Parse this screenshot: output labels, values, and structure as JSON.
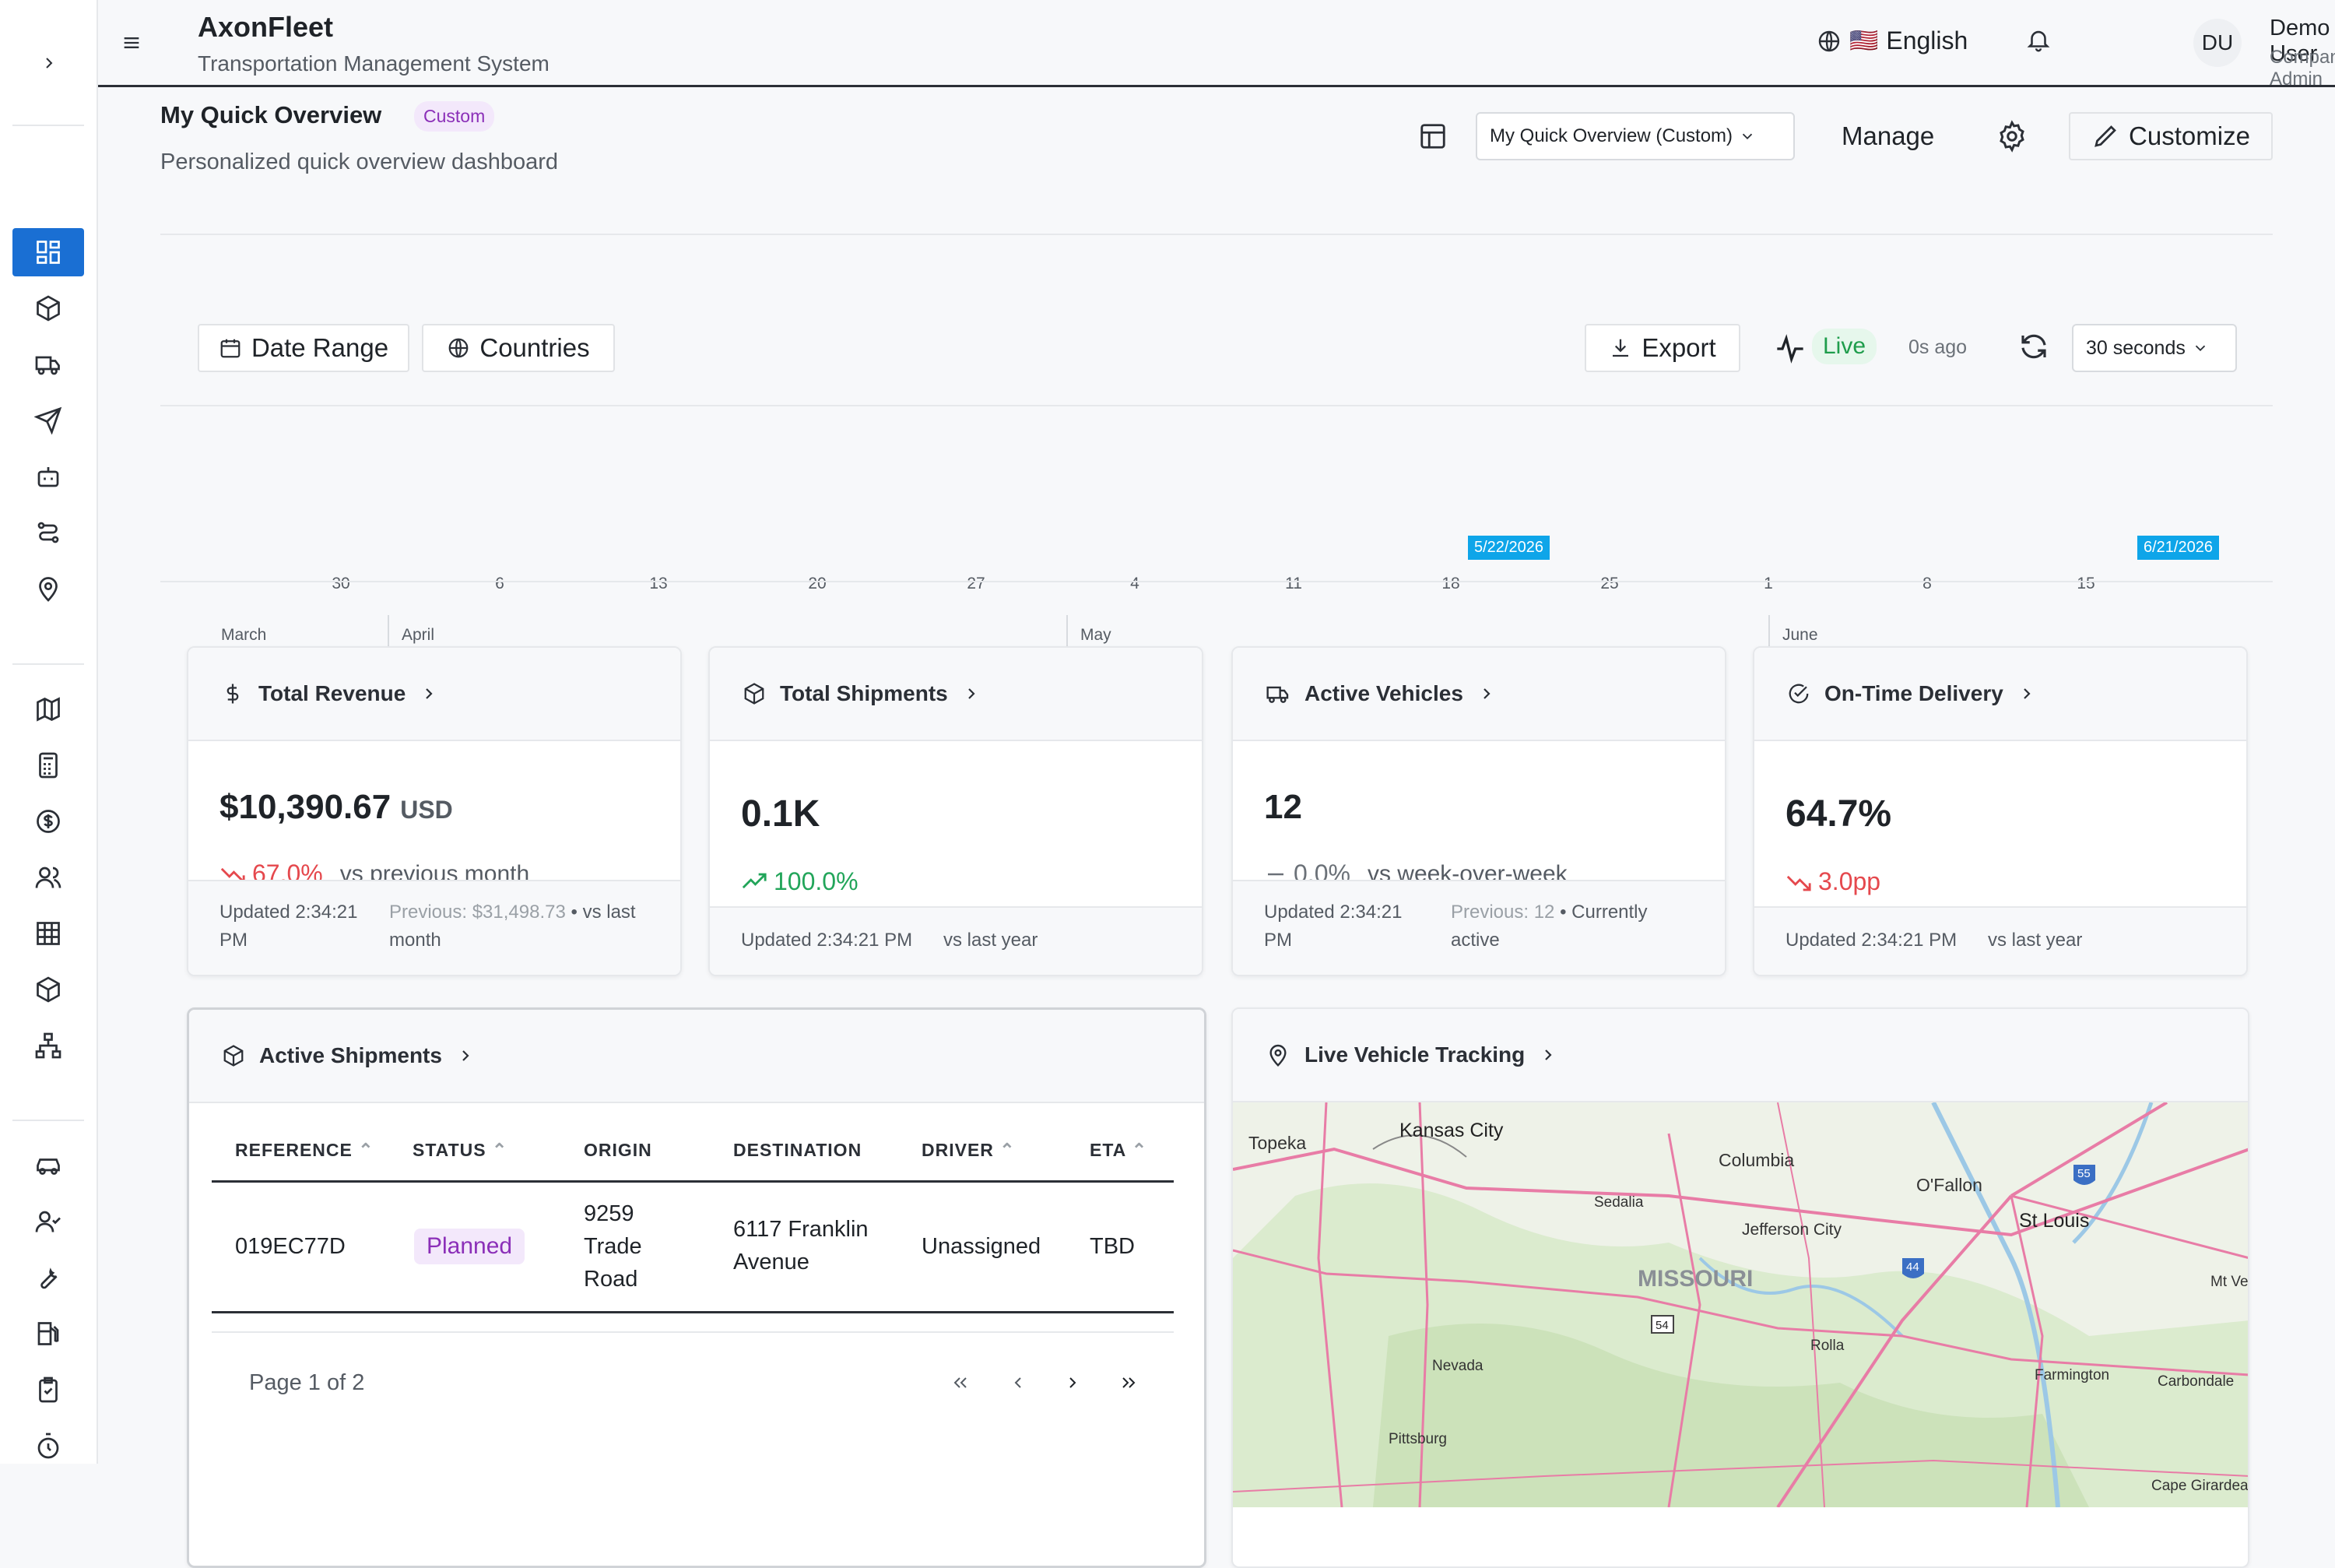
{
  "app": {
    "title": "AxonFleet",
    "subtitle": "Transportation Management System"
  },
  "header": {
    "language": "English",
    "flag": "🇺🇸",
    "user_initials": "DU",
    "user_name": "Demo User",
    "user_role": "Company Admin"
  },
  "page": {
    "title": "My Quick Overview",
    "badge": "Custom",
    "subtitle": "Personalized quick overview dashboard",
    "dashboard_select": "My Quick Overview (Custom)",
    "manage_label": "Manage",
    "customize_label": "Customize"
  },
  "filters": {
    "date_range": "Date Range",
    "countries": "Countries",
    "export": "Export",
    "live": "Live",
    "ago": "0s ago",
    "interval": "30 seconds"
  },
  "timeline": {
    "days": [
      "30",
      "6",
      "13",
      "20",
      "27",
      "4",
      "11",
      "18",
      "25",
      "1",
      "8",
      "15"
    ],
    "months": [
      "March",
      "April",
      "May",
      "June"
    ],
    "markers": [
      "5/22/2026",
      "6/21/2026"
    ]
  },
  "kpis": [
    {
      "title": "Total Revenue",
      "value": "$10,390.67",
      "unit": "USD",
      "delta": "67.0%",
      "delta_note": "vs previous month",
      "updated": "Updated 2:34:21 PM",
      "previous": "Previous: $31,498.73",
      "context": "• vs last month"
    },
    {
      "title": "Total Shipments",
      "value": "0.1K",
      "delta": "100.0%",
      "updated": "Updated 2:34:21 PM",
      "context": "vs last year"
    },
    {
      "title": "Active Vehicles",
      "value": "12",
      "delta": "0.0%",
      "delta_note": "vs week-over-week",
      "updated": "Updated 2:34:21 PM",
      "previous": "Previous: 12",
      "context": "• Currently active"
    },
    {
      "title": "On-Time Delivery",
      "value": "64.7%",
      "delta": "3.0pp",
      "updated": "Updated 2:34:21 PM",
      "context": "vs last year"
    }
  ],
  "shipments": {
    "title": "Active Shipments",
    "columns": [
      "REFERENCE",
      "STATUS",
      "ORIGIN",
      "DESTINATION",
      "DRIVER",
      "ETA"
    ],
    "rows": [
      {
        "reference": "019EC77D",
        "status": "Planned",
        "origin": "9259 Trade Road",
        "destination": "6117 Franklin Avenue",
        "driver": "Unassigned",
        "eta": "TBD"
      }
    ],
    "pagination": "Page 1 of 2"
  },
  "tracking": {
    "title": "Live Vehicle Tracking",
    "map_labels": {
      "topeka": "Topeka",
      "kansas_city": "Kansas City",
      "columbia": "Columbia",
      "sedalia": "Sedalia",
      "ofallon": "O'Fallon",
      "st_louis": "St Louis",
      "jefferson_city": "Jefferson City",
      "missouri": "MISSOURI",
      "mt_ve": "Mt Ve",
      "nevada": "Nevada",
      "rolla": "Rolla",
      "farmington": "Farmington",
      "carbondale": "Carbondale",
      "pittsburg": "Pittsburg",
      "cape_girardeau": "Cape Girardeau",
      "i55": "55",
      "i44": "44",
      "us54": "54"
    }
  }
}
